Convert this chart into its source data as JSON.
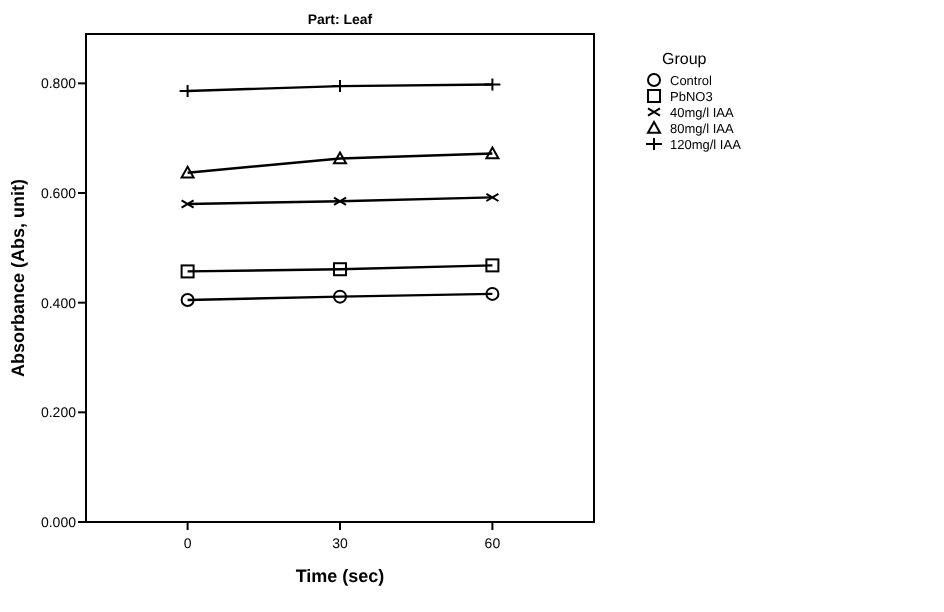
{
  "chart_data": {
    "type": "line",
    "title": "Part: Leaf",
    "xlabel": "Time (sec)",
    "ylabel": "Absorbance (Abs, unit)",
    "legend_title": "Group",
    "legend": "right",
    "x": [
      0,
      30,
      60
    ],
    "xlim": [
      -20,
      80
    ],
    "xticks": [
      0,
      30,
      60
    ],
    "ylim": [
      0,
      0.89
    ],
    "yticks": [
      {
        "value": 0,
        "label": "0.000"
      },
      {
        "value": 0.2,
        "label": "0.200"
      },
      {
        "value": 0.4,
        "label": "0.400"
      },
      {
        "value": 0.6,
        "label": "0.600"
      },
      {
        "value": 0.8,
        "label": "0.800"
      }
    ],
    "grid": false,
    "line_style": "solid",
    "series": [
      {
        "name": "Control",
        "color": "#000000",
        "marker": "circle",
        "values": [
          0.405,
          0.411,
          0.416
        ]
      },
      {
        "name": "PbNO3",
        "color": "#000000",
        "marker": "square",
        "values": [
          0.457,
          0.461,
          0.468
        ]
      },
      {
        "name": "40mg/l IAA",
        "color": "#000000",
        "marker": "x",
        "values": [
          0.58,
          0.585,
          0.592
        ]
      },
      {
        "name": "80mg/l IAA",
        "color": "#000000",
        "marker": "triangle",
        "values": [
          0.637,
          0.663,
          0.672
        ]
      },
      {
        "name": "120mg/l IAA",
        "color": "#000000",
        "marker": "cross",
        "values": [
          0.786,
          0.795,
          0.798
        ]
      }
    ]
  }
}
